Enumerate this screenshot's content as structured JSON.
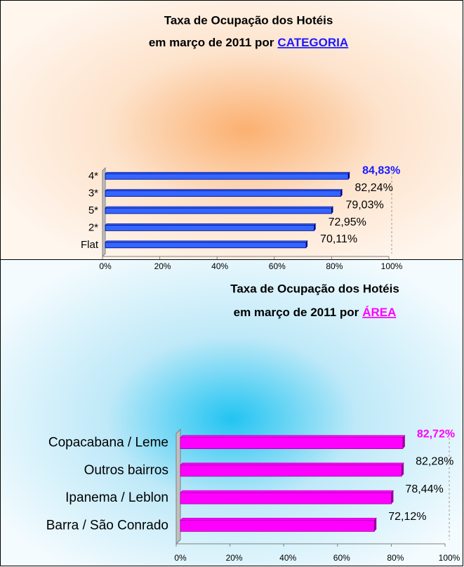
{
  "chart_data": [
    {
      "type": "bar",
      "orientation": "horizontal",
      "title": "Taxa de Ocupação dos Hotéis",
      "subtitle": "em março de 2011 por",
      "subtitle_link": "CATEGORIA",
      "link_color": "#1a1aff",
      "categories": [
        "4*",
        "3*",
        "5*",
        "2*",
        "Flat"
      ],
      "values": [
        84.83,
        82.24,
        79.03,
        72.95,
        70.11
      ],
      "value_labels": [
        "84,83%",
        "82,24%",
        "79,03%",
        "72,95%",
        "70,11%"
      ],
      "value_label_colors": [
        "#1a1aff",
        "#000000",
        "#000000",
        "#000000",
        "#000000"
      ],
      "color": "#3366ff",
      "xlim": [
        0,
        100
      ],
      "xticks": [
        {
          "value": 0,
          "label": "0%"
        },
        {
          "value": 20,
          "label": "20%"
        },
        {
          "value": 40,
          "label": "40%"
        },
        {
          "value": 60,
          "label": "60%"
        },
        {
          "value": 80,
          "label": "80%"
        },
        {
          "value": 100,
          "label": "100%"
        }
      ]
    },
    {
      "type": "bar",
      "orientation": "horizontal",
      "title": "Taxa de Ocupação dos Hotéis",
      "subtitle": "em março de 2011 por",
      "subtitle_link": "ÁREA",
      "link_color": "#ff00ff",
      "categories": [
        "Copacabana / Leme",
        "Outros bairros",
        "Ipanema / Leblon",
        "Barra / São Conrado"
      ],
      "values": [
        82.72,
        82.28,
        78.44,
        72.12
      ],
      "value_labels": [
        "82,72%",
        "82,28%",
        "78,44%",
        "72,12%"
      ],
      "value_label_colors": [
        "#ff00ff",
        "#000000",
        "#000000",
        "#000000"
      ],
      "color": "#ff00ff",
      "xlim": [
        0,
        100
      ],
      "xticks": [
        {
          "value": 0,
          "label": "0%"
        },
        {
          "value": 20,
          "label": "20%"
        },
        {
          "value": 40,
          "label": "40%"
        },
        {
          "value": 60,
          "label": "60%"
        },
        {
          "value": 80,
          "label": "80%"
        },
        {
          "value": 100,
          "label": "100%"
        }
      ]
    }
  ]
}
